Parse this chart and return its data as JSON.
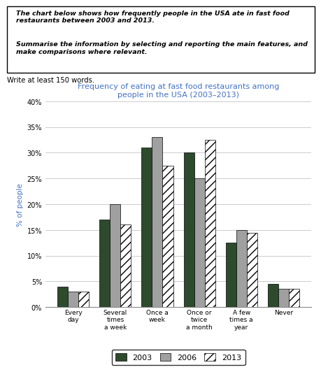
{
  "title_line1": "Frequency of eating at fast food restaurants among",
  "title_line2": "people in the USA (2003–2013)",
  "title_color": "#4472c4",
  "prompt_text1": "The chart below shows how frequently people in the USA ate in fast food\nrestaurants between 2003 and 2013.",
  "prompt_text2": "Summarise the information by selecting and reporting the main features, and\nmake comparisons where relevant.",
  "subtext": "Write at least 150 words.",
  "categories": [
    "Every\nday",
    "Several\ntimes\na week",
    "Once a\nweek",
    "Once or\ntwice\na month",
    "A few\ntimes a\nyear",
    "Never"
  ],
  "data_2003": [
    4,
    17,
    31,
    30,
    12.5,
    4.5
  ],
  "data_2006": [
    3,
    20,
    33,
    25,
    15,
    3.5
  ],
  "data_2013": [
    3,
    16,
    27.5,
    32.5,
    14.5,
    3.5
  ],
  "color_2003": "#2d4a2d",
  "color_2006": "#a0a0a0",
  "ylabel": "% of people",
  "ylabel_color": "#4472c4",
  "ylim": [
    0,
    40
  ],
  "yticks": [
    0,
    5,
    10,
    15,
    20,
    25,
    30,
    35,
    40
  ],
  "legend_labels": [
    "2003",
    "2006",
    "2013"
  ],
  "bg_color": "#ffffff",
  "grid_color": "#cccccc"
}
